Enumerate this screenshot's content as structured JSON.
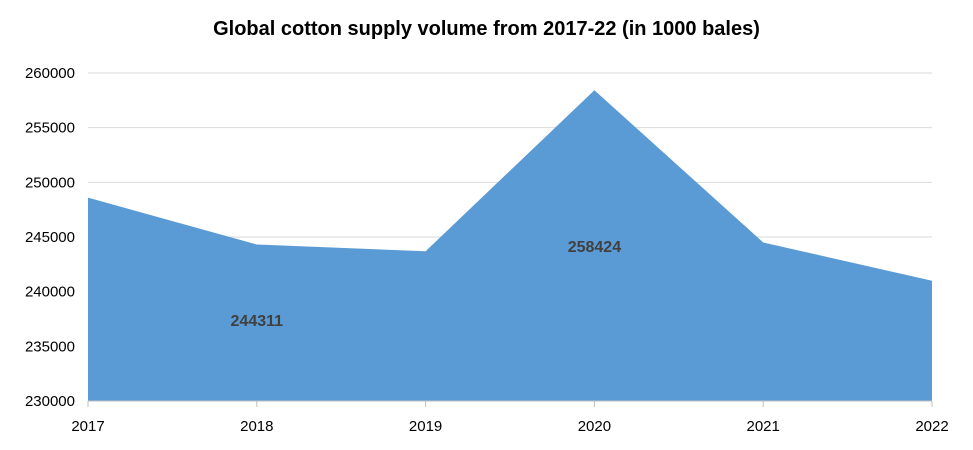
{
  "chart_data": {
    "type": "area",
    "title": "Global cotton supply volume from 2017-22 (in 1000 bales)",
    "xlabel": "",
    "ylabel": "",
    "categories": [
      "2017",
      "2018",
      "2019",
      "2020",
      "2021",
      "2022"
    ],
    "series": [
      {
        "values": [
          248600,
          244311,
          243700,
          258424,
          244500,
          241000
        ]
      }
    ],
    "data_labels": [
      {
        "category": "2018",
        "text": "244311"
      },
      {
        "category": "2020",
        "text": "258424"
      }
    ],
    "ylim": [
      230000,
      260000
    ],
    "yticks": [
      230000,
      235000,
      240000,
      245000,
      250000,
      255000,
      260000
    ],
    "grid": true,
    "legend": "none",
    "colors": {
      "area_fill": "#5B9BD5",
      "grid": "#D9D9D9",
      "axis": "#BFBFBF",
      "tick_text": "#000000",
      "label_text": "#404040"
    }
  }
}
